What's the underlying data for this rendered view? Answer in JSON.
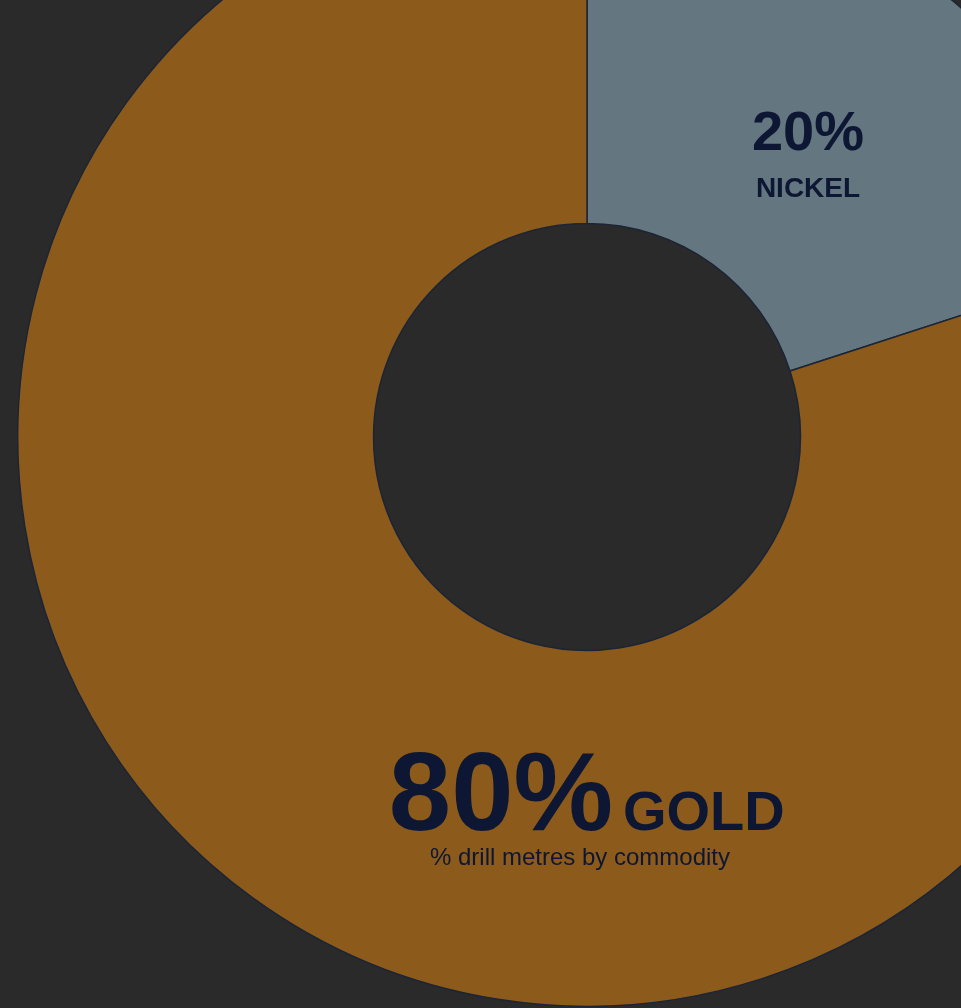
{
  "chart_data": {
    "type": "doughnut",
    "subtitle": "% drill metres by commodity",
    "categories": [
      "NICKEL",
      "GOLD"
    ],
    "values": [
      20,
      80
    ],
    "value_labels": [
      "20%",
      "80%"
    ],
    "colors": [
      "#647680",
      "#8c5a1a"
    ],
    "data_labels": true
  }
}
